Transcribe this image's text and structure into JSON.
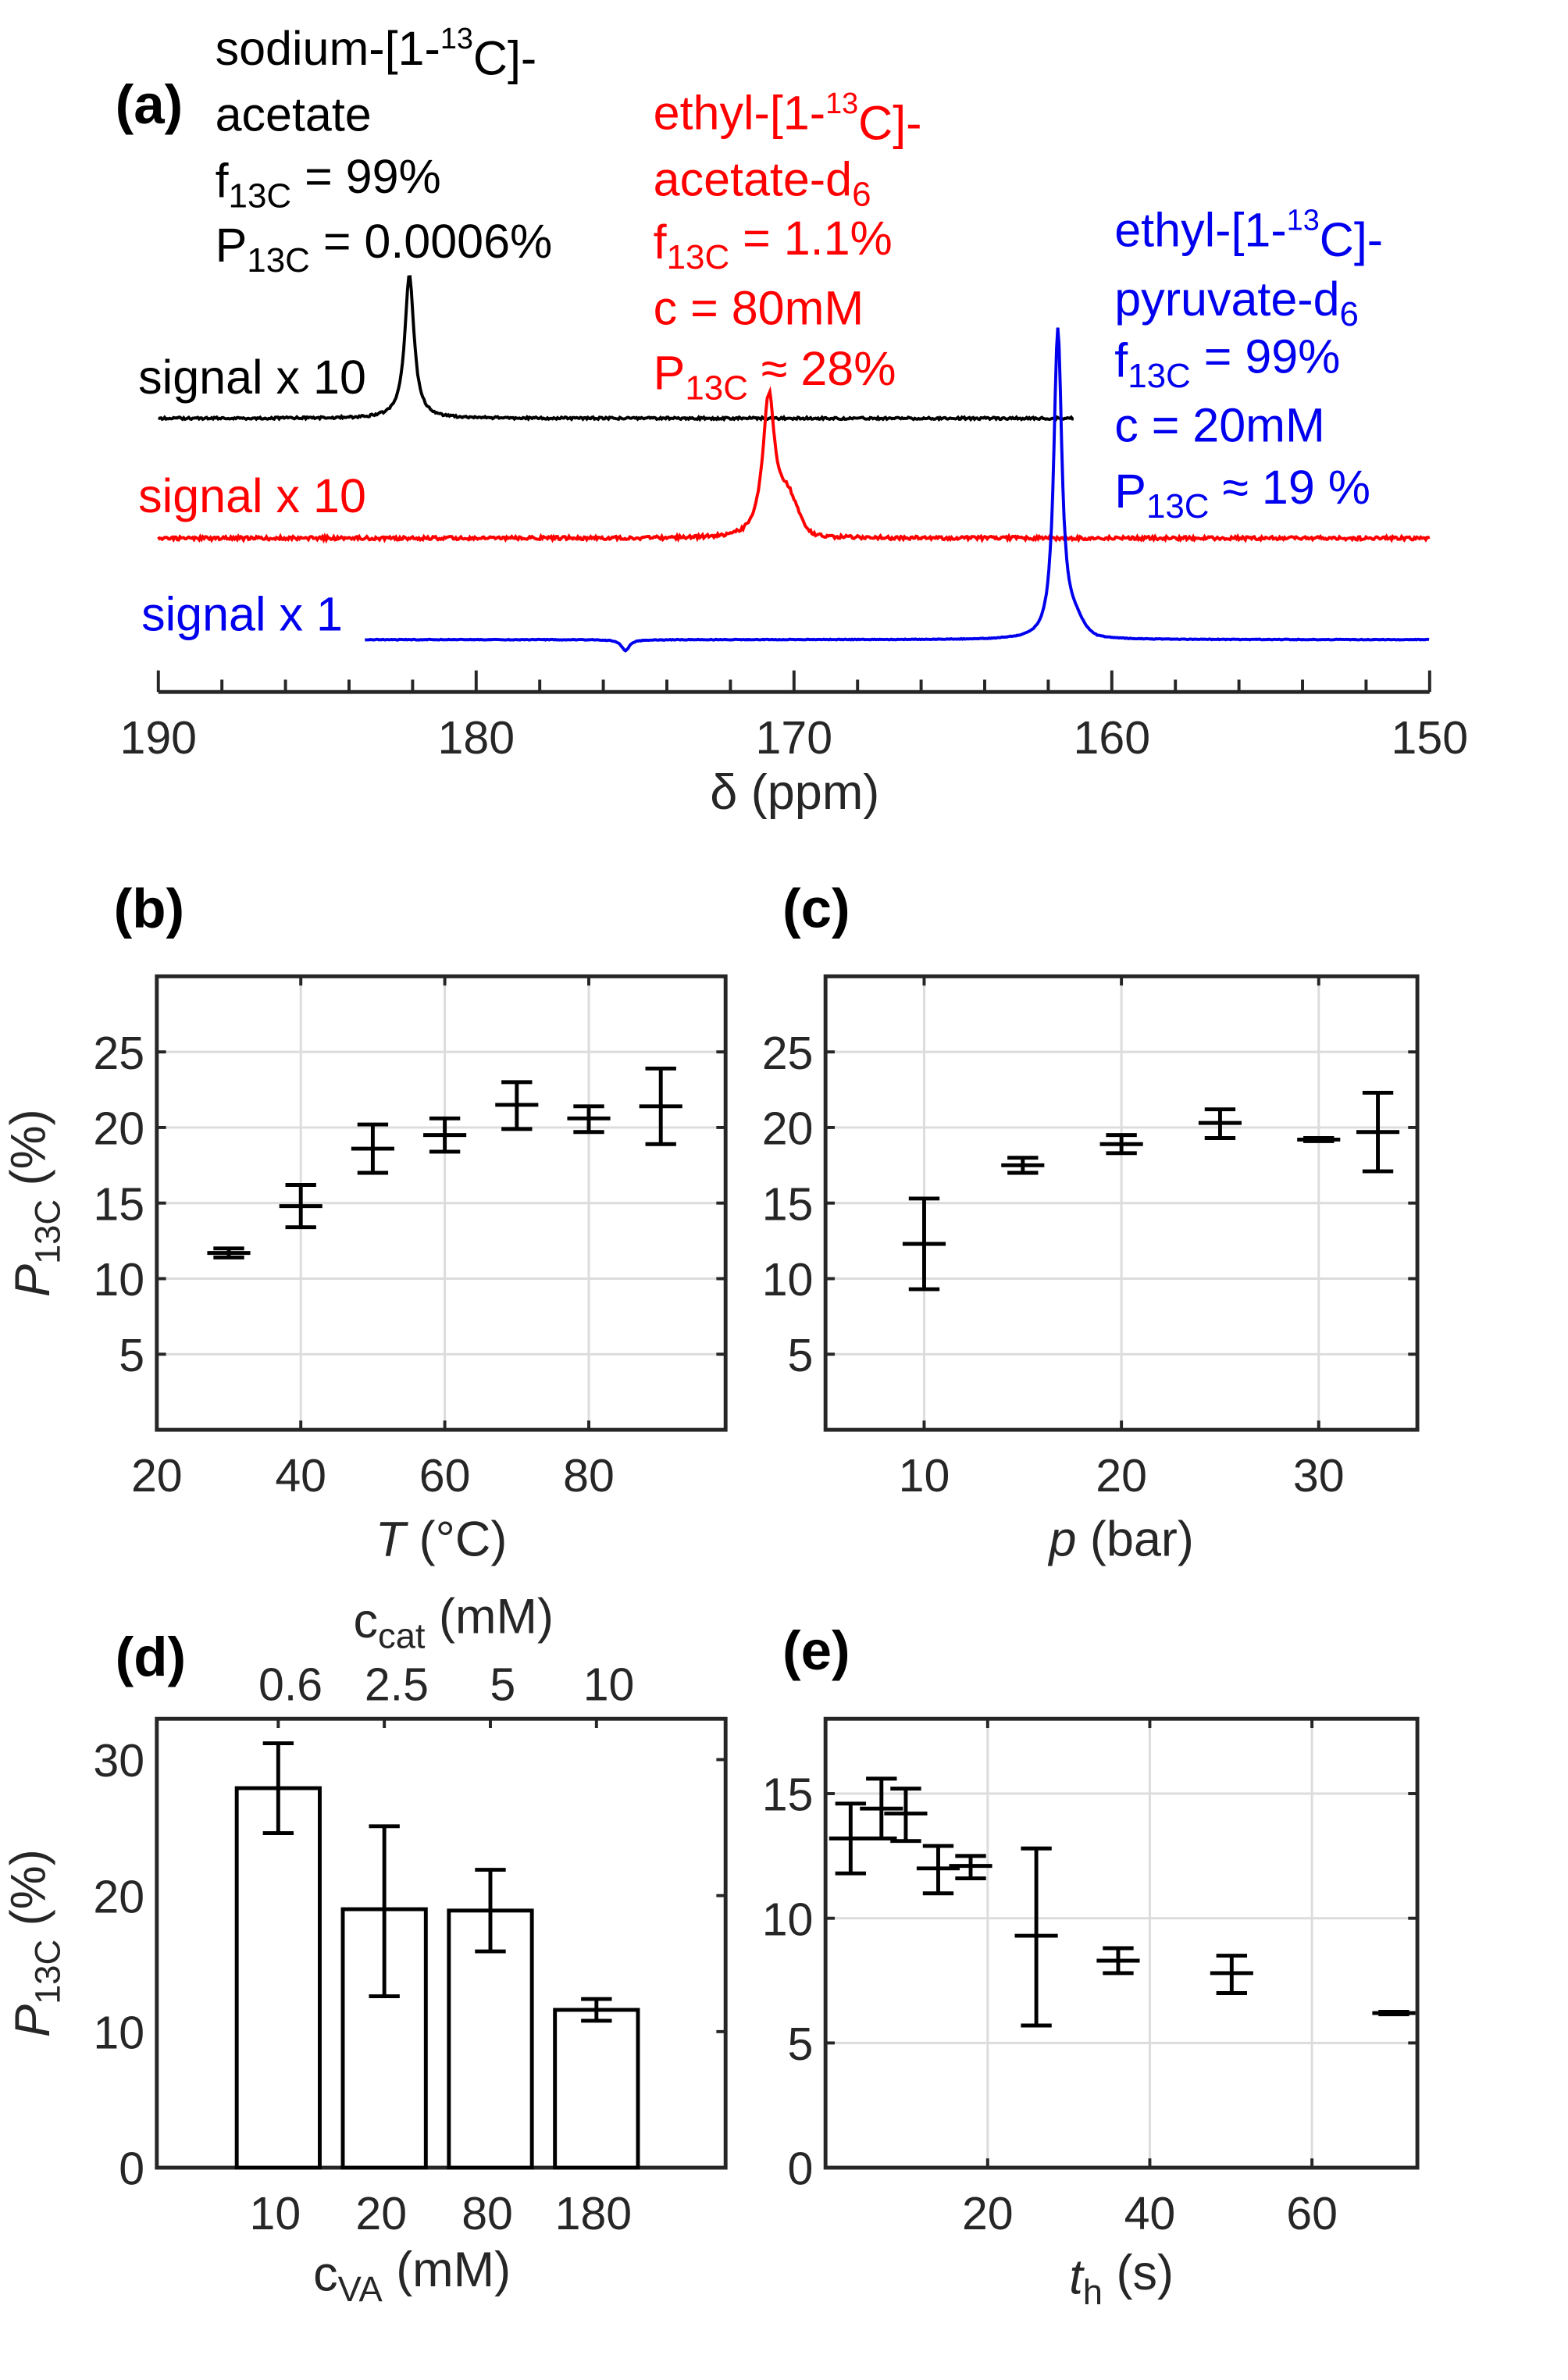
{
  "colors": {
    "black": "#000000",
    "red": "#ff0000",
    "blue": "#0000ee",
    "axis": "#262626",
    "grid": "#dcdcdc"
  },
  "chart_data": [
    {
      "panel": "(a)",
      "type": "line",
      "xlabel": "δ (ppm)",
      "xlim": [
        190,
        150
      ],
      "xticks": [
        "190",
        "180",
        "170",
        "160",
        "150"
      ],
      "series": [
        {
          "name": "signal x 10",
          "color": "#000000",
          "range_ppm": [
            190,
            161.2
          ],
          "peaks": [
            {
              "ppm": 182.1,
              "rel_intensity": 0.46
            }
          ]
        },
        {
          "name": "signal x 10",
          "color": "#ff0000",
          "range_ppm": [
            190,
            150
          ],
          "peaks": [
            {
              "ppm": 170.8,
              "rel_intensity": 0.46
            }
          ]
        },
        {
          "name": "signal x 1",
          "color": "#0000ee",
          "range_ppm": [
            183.5,
            150
          ],
          "peaks": [
            {
              "ppm": 175.3,
              "rel_intensity": -0.035
            },
            {
              "ppm": 161.7,
              "rel_intensity": 1.0
            }
          ]
        }
      ],
      "annotations": [
        {
          "color": "#000000",
          "lines": [
            [
              {
                "t": "sodium-[1-"
              },
              {
                "t": "13",
                "s": "sup"
              },
              {
                "t": "C]-"
              }
            ],
            [
              {
                "t": "acetate"
              }
            ],
            [
              {
                "t": "f"
              },
              {
                "t": "13C",
                "s": "sub"
              },
              {
                "t": " = 99%"
              }
            ],
            [
              {
                "t": "P"
              },
              {
                "t": "13C",
                "s": "sub"
              },
              {
                "t": " = 0.0006%"
              }
            ]
          ]
        },
        {
          "color": "#ff0000",
          "lines": [
            [
              {
                "t": "ethyl-[1-"
              },
              {
                "t": "13",
                "s": "sup"
              },
              {
                "t": "C]-"
              }
            ],
            [
              {
                "t": "acetate-d"
              },
              {
                "t": "6",
                "s": "sub"
              }
            ],
            [
              {
                "t": "f"
              },
              {
                "t": "13C",
                "s": "sub"
              },
              {
                "t": " = 1.1%"
              }
            ],
            [
              {
                "t": "c = 80mM"
              }
            ],
            [
              {
                "t": "P"
              },
              {
                "t": "13C",
                "s": "sub"
              },
              {
                "t": " ≈ 28%"
              }
            ]
          ]
        },
        {
          "color": "#0000ee",
          "lines": [
            [
              {
                "t": "ethyl-[1-"
              },
              {
                "t": "13",
                "s": "sup"
              },
              {
                "t": "C]-"
              }
            ],
            [
              {
                "t": "pyruvate-d"
              },
              {
                "t": "6",
                "s": "sub"
              }
            ],
            [
              {
                "t": "f"
              },
              {
                "t": "13C",
                "s": "sub"
              },
              {
                "t": " = 99%"
              }
            ],
            [
              {
                "t": "c = 20mM"
              }
            ],
            [
              {
                "t": "P"
              },
              {
                "t": "13C",
                "s": "sub"
              },
              {
                "t": " ≈ 19 %"
              }
            ]
          ]
        }
      ]
    },
    {
      "panel": "(b)",
      "type": "scatter",
      "xlabel": {
        "main": "T",
        "rest": " (°C)"
      },
      "ylabel": {
        "main": "P",
        "sub": "13C",
        "rest": " (%)"
      },
      "xlim": [
        20,
        99
      ],
      "ylim": [
        0,
        30
      ],
      "grid": true,
      "xticks": [
        20,
        40,
        60,
        80
      ],
      "yticks": [
        5,
        10,
        15,
        20,
        25
      ],
      "points": [
        {
          "x": 30,
          "y": 11.7,
          "lo": 11.4,
          "hi": 12.0
        },
        {
          "x": 40,
          "y": 14.8,
          "lo": 13.4,
          "hi": 16.2
        },
        {
          "x": 50,
          "y": 18.6,
          "lo": 17.0,
          "hi": 20.2
        },
        {
          "x": 60,
          "y": 19.5,
          "lo": 18.4,
          "hi": 20.6
        },
        {
          "x": 70,
          "y": 21.5,
          "lo": 19.9,
          "hi": 23.0
        },
        {
          "x": 80,
          "y": 20.6,
          "lo": 19.7,
          "hi": 21.4
        },
        {
          "x": 90,
          "y": 21.4,
          "lo": 18.9,
          "hi": 23.9
        }
      ]
    },
    {
      "panel": "(c)",
      "type": "scatter",
      "xlabel": {
        "main": "p",
        "rest": " (bar)"
      },
      "xlim": [
        5,
        35
      ],
      "ylim": [
        0,
        30
      ],
      "grid": true,
      "xticks": [
        10,
        20,
        30
      ],
      "yticks": [
        5,
        10,
        15,
        20,
        25
      ],
      "points": [
        {
          "x": 10,
          "y": 12.3,
          "lo": 9.3,
          "hi": 15.3
        },
        {
          "x": 15,
          "y": 17.5,
          "lo": 17.0,
          "hi": 18.0
        },
        {
          "x": 20,
          "y": 18.9,
          "lo": 18.3,
          "hi": 19.5
        },
        {
          "x": 25,
          "y": 20.3,
          "lo": 19.3,
          "hi": 21.2
        },
        {
          "x": 30,
          "y": 19.2,
          "lo": 19.1,
          "hi": 19.3
        },
        {
          "x": 33,
          "y": 19.7,
          "lo": 17.1,
          "hi": 22.3
        }
      ]
    },
    {
      "panel": "(d)",
      "type": "bar",
      "xlabel": {
        "main": "c",
        "sub": "VA",
        "rest": " (mM)"
      },
      "ylabel": {
        "main": "P",
        "sub": "13C",
        "rest": " (%)"
      },
      "x2label": {
        "main": "c",
        "sub": "cat",
        "rest": " (mM)"
      },
      "categories": [
        "10",
        "20",
        "80",
        "180"
      ],
      "categories_top": [
        "0.6",
        "2.5",
        "5",
        "10"
      ],
      "ylim": [
        0,
        33
      ],
      "yticks": [
        0,
        10,
        20,
        30
      ],
      "grid": false,
      "values": [
        27.9,
        19.0,
        18.9,
        11.6
      ],
      "errors": [
        {
          "lo": 24.6,
          "hi": 31.2
        },
        {
          "lo": 12.6,
          "hi": 25.1
        },
        {
          "lo": 15.9,
          "hi": 21.9
        },
        {
          "lo": 10.8,
          "hi": 12.4
        }
      ]
    },
    {
      "panel": "(e)",
      "type": "scatter",
      "xlabel": {
        "main": "t",
        "sub": "h",
        "rest": " (s)"
      },
      "xlim": [
        0,
        73
      ],
      "ylim": [
        0,
        18
      ],
      "grid": true,
      "xticks": [
        20,
        40,
        60
      ],
      "yticks": [
        0,
        5,
        10,
        15
      ],
      "points": [
        {
          "x": 3.1,
          "y": 13.2,
          "lo": 11.8,
          "hi": 14.6
        },
        {
          "x": 6.9,
          "y": 14.4,
          "lo": 13.2,
          "hi": 15.6
        },
        {
          "x": 9.9,
          "y": 14.2,
          "lo": 13.1,
          "hi": 15.2
        },
        {
          "x": 13.9,
          "y": 12.0,
          "lo": 11.0,
          "hi": 12.9
        },
        {
          "x": 17.9,
          "y": 12.1,
          "lo": 11.6,
          "hi": 12.5
        },
        {
          "x": 26.0,
          "y": 9.3,
          "lo": 5.7,
          "hi": 12.8
        },
        {
          "x": 36.1,
          "y": 8.3,
          "lo": 7.8,
          "hi": 8.8
        },
        {
          "x": 50.1,
          "y": 7.8,
          "lo": 7.0,
          "hi": 8.5
        },
        {
          "x": 70.1,
          "y": 6.2,
          "lo": 6.15,
          "hi": 6.25
        }
      ]
    }
  ]
}
